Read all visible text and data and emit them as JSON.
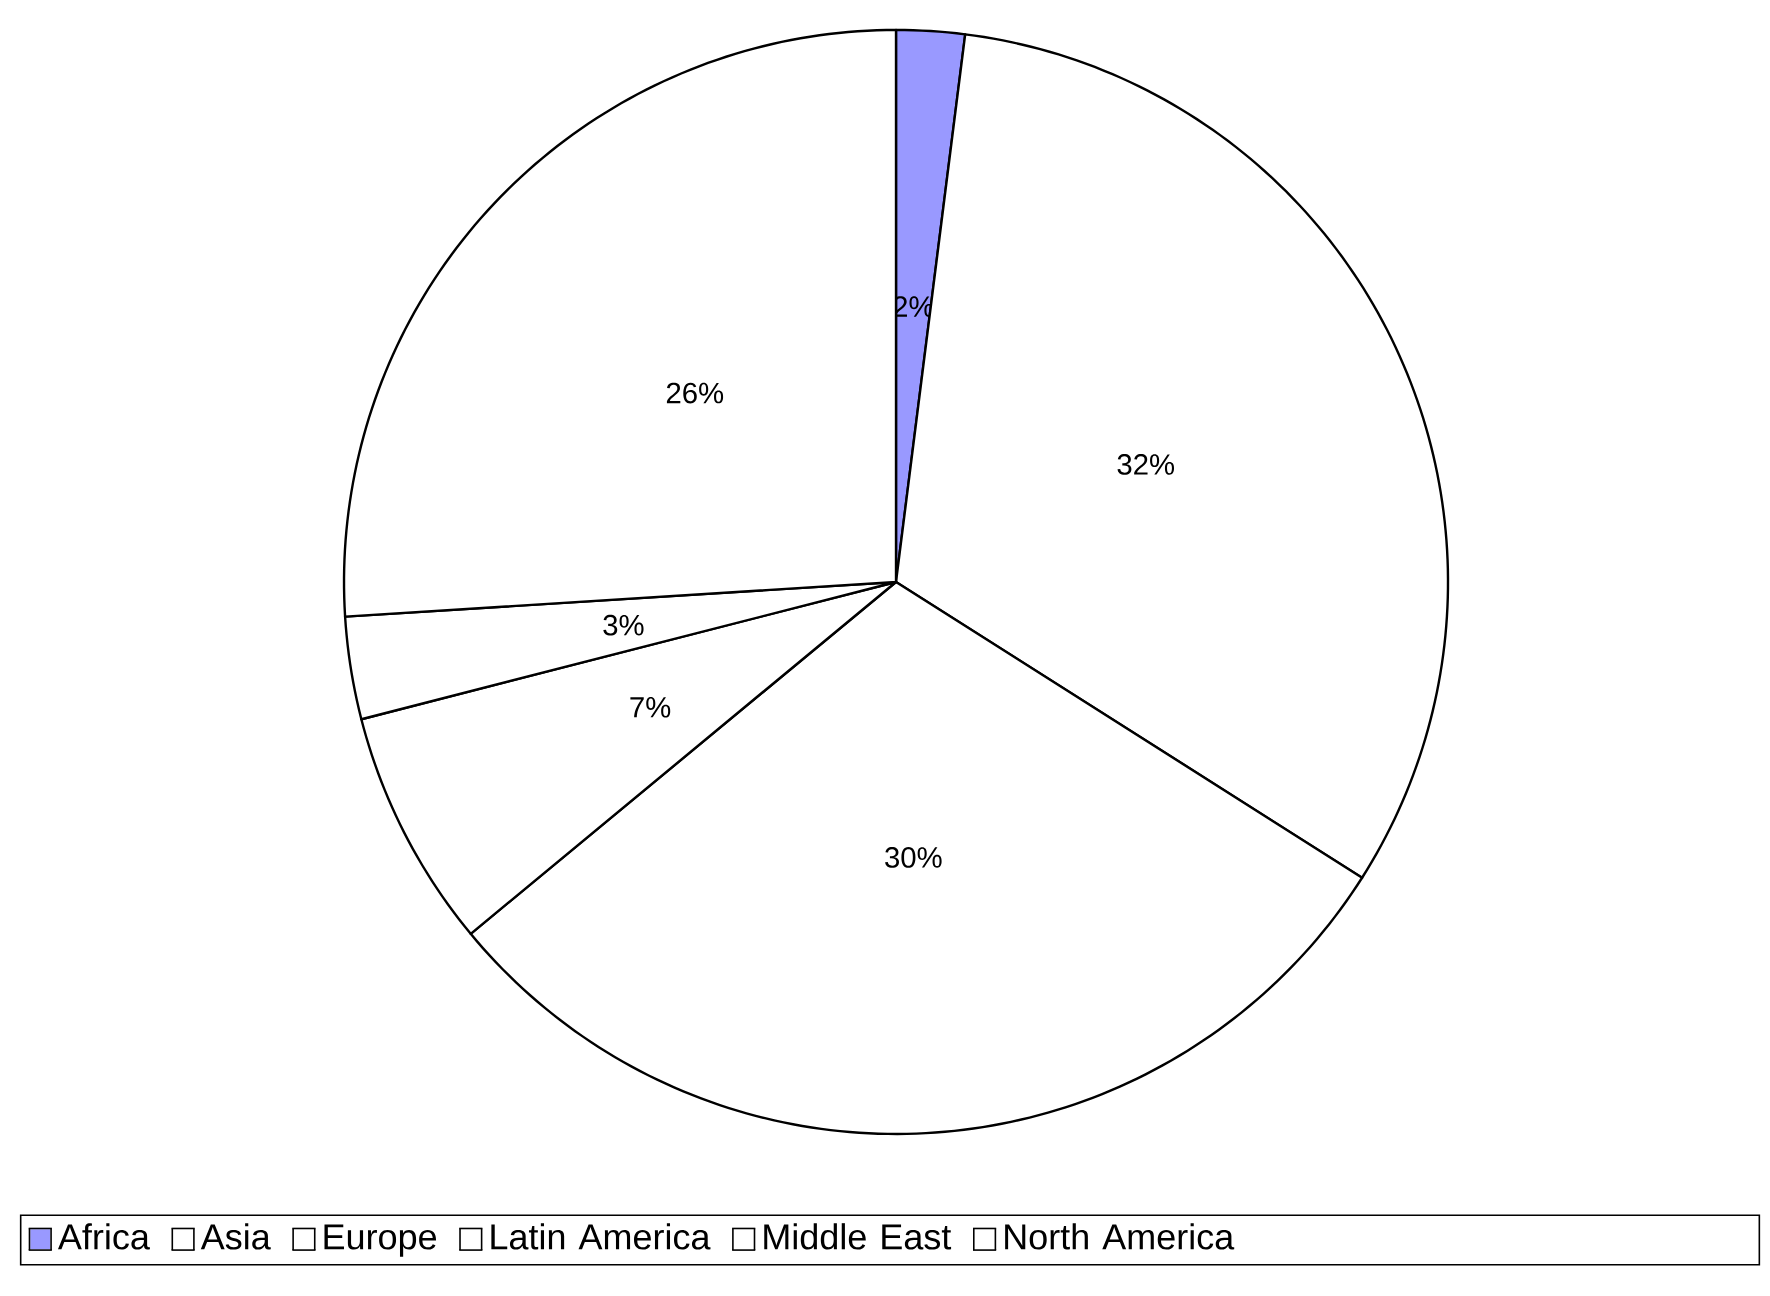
{
  "chart_data": {
    "type": "pie",
    "categories": [
      "Africa",
      "Asia",
      "Europe",
      "Latin America",
      "Middle East",
      "North America"
    ],
    "values": [
      2,
      32,
      30,
      7,
      3,
      26
    ],
    "colors": [
      "#9999ff",
      "#ffffff",
      "#ffffff",
      "#ffffff",
      "#ffffff",
      "#ffffff"
    ],
    "value_labels": [
      "2%",
      "32%",
      "30%",
      "7%",
      "3%",
      "26%"
    ],
    "legend": "bottom"
  }
}
